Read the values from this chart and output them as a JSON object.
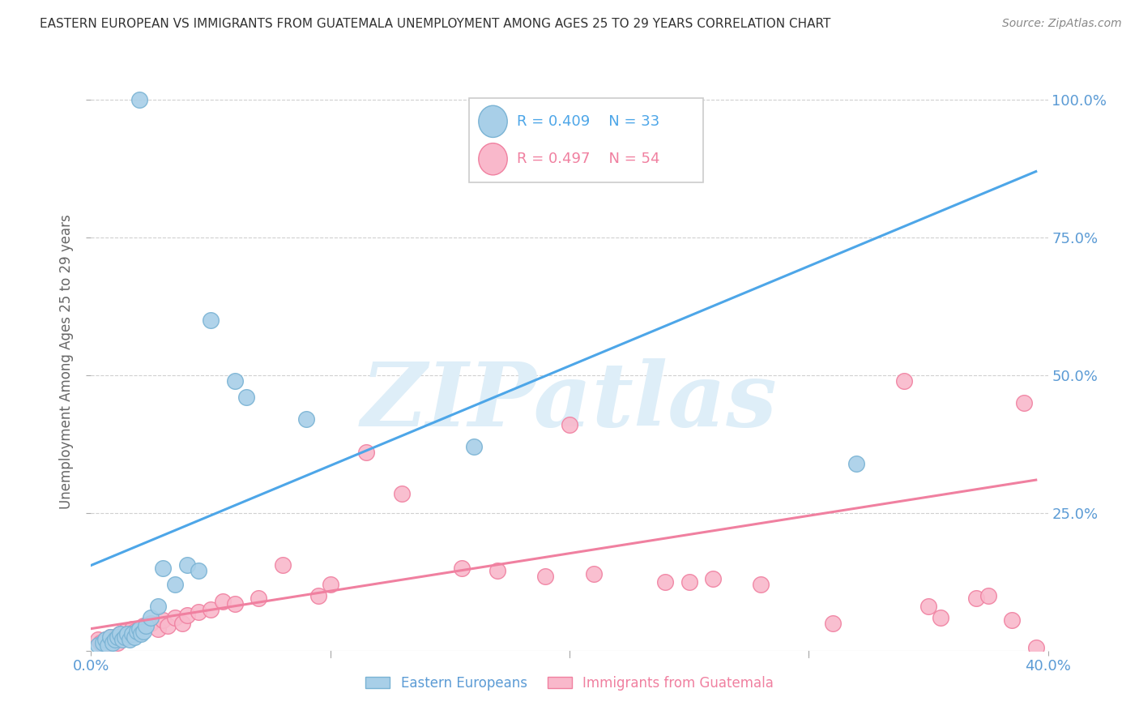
{
  "title": "EASTERN EUROPEAN VS IMMIGRANTS FROM GUATEMALA UNEMPLOYMENT AMONG AGES 25 TO 29 YEARS CORRELATION CHART",
  "source": "Source: ZipAtlas.com",
  "ylabel": "Unemployment Among Ages 25 to 29 years",
  "xlim": [
    0.0,
    0.4
  ],
  "ylim": [
    0.0,
    1.05
  ],
  "yticks": [
    0.0,
    0.25,
    0.5,
    0.75,
    1.0
  ],
  "ytick_labels": [
    "",
    "25.0%",
    "50.0%",
    "75.0%",
    "100.0%"
  ],
  "xticks": [
    0.0,
    0.1,
    0.2,
    0.3,
    0.4
  ],
  "xtick_labels": [
    "0.0%",
    "",
    "",
    "",
    "40.0%"
  ],
  "blue_label": "Eastern Europeans",
  "pink_label": "Immigrants from Guatemala",
  "blue_R": "R = 0.409",
  "blue_N": "N = 33",
  "pink_R": "R = 0.497",
  "pink_N": "N = 54",
  "blue_color": "#a8cfe8",
  "pink_color": "#f9b8cb",
  "blue_edge_color": "#7ab3d4",
  "pink_edge_color": "#f080a0",
  "blue_line_color": "#4da6e8",
  "pink_line_color": "#f080a0",
  "axis_color": "#5b9bd5",
  "grid_color": "#d0d0d0",
  "watermark_color": "#deeef8",
  "blue_points_x": [
    0.003,
    0.005,
    0.006,
    0.007,
    0.008,
    0.009,
    0.01,
    0.011,
    0.012,
    0.013,
    0.014,
    0.015,
    0.016,
    0.017,
    0.018,
    0.019,
    0.02,
    0.021,
    0.022,
    0.023,
    0.025,
    0.028,
    0.03,
    0.035,
    0.04,
    0.045,
    0.05,
    0.06,
    0.065,
    0.09,
    0.16,
    0.32,
    0.02
  ],
  "blue_points_y": [
    0.01,
    0.015,
    0.02,
    0.01,
    0.025,
    0.015,
    0.02,
    0.025,
    0.03,
    0.02,
    0.025,
    0.03,
    0.02,
    0.03,
    0.025,
    0.035,
    0.04,
    0.03,
    0.035,
    0.045,
    0.06,
    0.08,
    0.15,
    0.12,
    0.155,
    0.145,
    0.6,
    0.49,
    0.46,
    0.42,
    0.37,
    0.34,
    1.0
  ],
  "pink_points_x": [
    0.003,
    0.004,
    0.005,
    0.006,
    0.007,
    0.008,
    0.009,
    0.01,
    0.011,
    0.012,
    0.013,
    0.014,
    0.015,
    0.016,
    0.017,
    0.018,
    0.019,
    0.02,
    0.022,
    0.025,
    0.028,
    0.03,
    0.032,
    0.035,
    0.038,
    0.04,
    0.045,
    0.05,
    0.055,
    0.06,
    0.07,
    0.08,
    0.095,
    0.1,
    0.115,
    0.13,
    0.155,
    0.17,
    0.19,
    0.21,
    0.24,
    0.26,
    0.28,
    0.31,
    0.34,
    0.355,
    0.37,
    0.375,
    0.385,
    0.395,
    0.2,
    0.25,
    0.35,
    0.39
  ],
  "pink_points_y": [
    0.02,
    0.015,
    0.01,
    0.02,
    0.015,
    0.025,
    0.02,
    0.025,
    0.015,
    0.03,
    0.025,
    0.035,
    0.025,
    0.03,
    0.04,
    0.035,
    0.03,
    0.04,
    0.045,
    0.05,
    0.04,
    0.055,
    0.045,
    0.06,
    0.05,
    0.065,
    0.07,
    0.075,
    0.09,
    0.085,
    0.095,
    0.155,
    0.1,
    0.12,
    0.36,
    0.285,
    0.15,
    0.145,
    0.135,
    0.14,
    0.125,
    0.13,
    0.12,
    0.05,
    0.49,
    0.06,
    0.095,
    0.1,
    0.055,
    0.005,
    0.41,
    0.125,
    0.08,
    0.45
  ],
  "blue_line_x": [
    0.0,
    0.395
  ],
  "blue_line_y": [
    0.155,
    0.87
  ],
  "pink_line_x": [
    0.0,
    0.395
  ],
  "pink_line_y": [
    0.04,
    0.31
  ]
}
